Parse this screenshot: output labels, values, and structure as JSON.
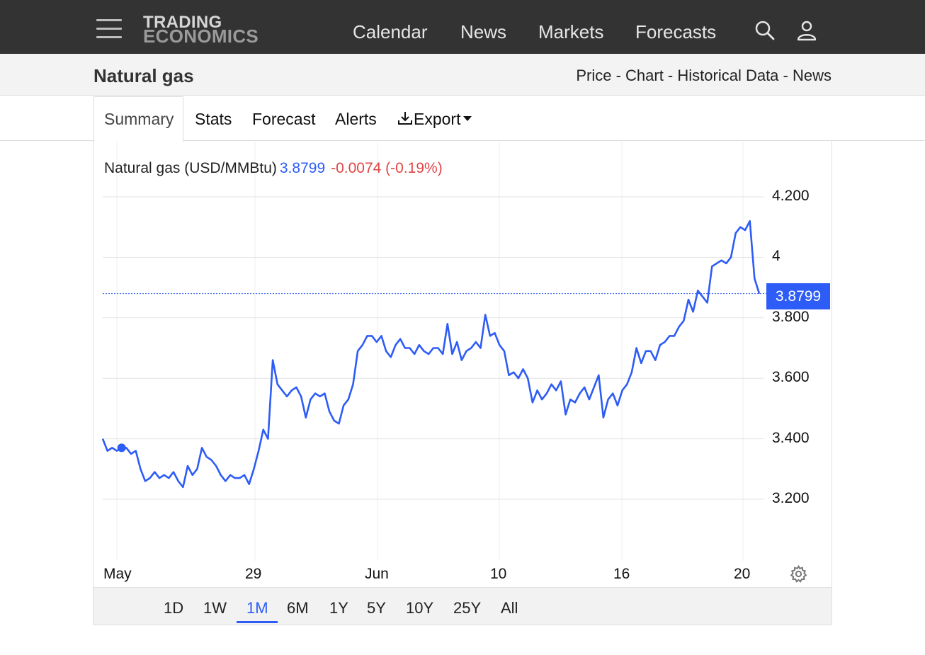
{
  "header": {
    "logo_line1": "TRADING",
    "logo_line2": "ECONOMICS",
    "nav": [
      "Calendar",
      "News",
      "Markets",
      "Forecasts"
    ],
    "icons": [
      "menu-icon",
      "search-icon",
      "user-icon"
    ]
  },
  "subheader": {
    "title": "Natural gas",
    "breadcrumb": [
      "Price",
      "Chart",
      "Historical Data",
      "News"
    ],
    "separator": " - "
  },
  "tabs": {
    "summary": "Summary",
    "stats": "Stats",
    "forecast": "Forecast",
    "alerts": "Alerts",
    "export": "Export"
  },
  "legend": {
    "name": "Natural gas (USD/MMBtu)",
    "value": "3.8799",
    "change": "-0.0074 (-0.19%)"
  },
  "last_price_badge": "3.8799",
  "range_buttons": [
    "1D",
    "1W",
    "1M",
    "6M",
    "1Y",
    "5Y",
    "10Y",
    "25Y",
    "All"
  ],
  "selected_range": "1M",
  "colors": {
    "line": "#2d5cf6",
    "negative": "#e04646",
    "navbar": "#333333"
  },
  "chart_data": {
    "type": "line",
    "title": "",
    "xlabel": "",
    "ylabel": "",
    "ylim": [
      3.0,
      4.2
    ],
    "yticks": [
      "4.200",
      "4",
      "3.800",
      "3.600",
      "3.400",
      "3.200"
    ],
    "ytick_values": [
      4.2,
      4.0,
      3.8,
      3.6,
      3.4,
      3.2
    ],
    "xticks": [
      "May",
      "29",
      "Jun",
      "10",
      "16",
      "20"
    ],
    "grid": true,
    "last_value": 3.8799,
    "series": [
      {
        "values": [
          3.4,
          3.36,
          3.37,
          3.36,
          3.37,
          3.37,
          3.35,
          3.36,
          3.3,
          3.26,
          3.27,
          3.29,
          3.27,
          3.28,
          3.27,
          3.29,
          3.26,
          3.24,
          3.31,
          3.28,
          3.3,
          3.37,
          3.34,
          3.33,
          3.31,
          3.28,
          3.26,
          3.28,
          3.27,
          3.27,
          3.28,
          3.25,
          3.3,
          3.36,
          3.43,
          3.4,
          3.66,
          3.58,
          3.56,
          3.54,
          3.56,
          3.57,
          3.54,
          3.47,
          3.53,
          3.55,
          3.54,
          3.55,
          3.49,
          3.46,
          3.45,
          3.51,
          3.53,
          3.58,
          3.69,
          3.71,
          3.74,
          3.74,
          3.72,
          3.74,
          3.69,
          3.67,
          3.71,
          3.73,
          3.7,
          3.7,
          3.68,
          3.71,
          3.69,
          3.68,
          3.7,
          3.7,
          3.68,
          3.78,
          3.68,
          3.72,
          3.66,
          3.69,
          3.7,
          3.72,
          3.7,
          3.81,
          3.74,
          3.75,
          3.71,
          3.69,
          3.61,
          3.62,
          3.6,
          3.63,
          3.6,
          3.52,
          3.56,
          3.53,
          3.55,
          3.58,
          3.56,
          3.59,
          3.48,
          3.53,
          3.52,
          3.55,
          3.57,
          3.53,
          3.57,
          3.61,
          3.47,
          3.53,
          3.55,
          3.51,
          3.56,
          3.58,
          3.62,
          3.7,
          3.65,
          3.69,
          3.69,
          3.66,
          3.71,
          3.72,
          3.74,
          3.74,
          3.77,
          3.79,
          3.86,
          3.82,
          3.89,
          3.87,
          3.85,
          3.97,
          3.98,
          3.99,
          3.98,
          4.0,
          4.08,
          4.1,
          4.09,
          4.12,
          3.93,
          3.88
        ]
      }
    ]
  }
}
